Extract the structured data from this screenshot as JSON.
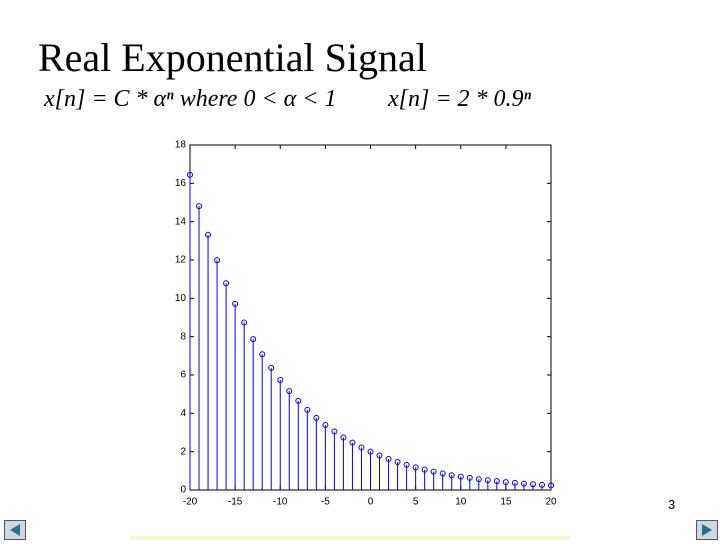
{
  "slide": {
    "title": "Real Exponential Signal",
    "formula_general": "x[n] = C * αⁿ  where 0 < α < 1",
    "formula_specific": "x[n] = 2 * 0.9ⁿ",
    "page_number": "3"
  },
  "chart_data": {
    "type": "stem",
    "color": "#0000ff",
    "x": [
      -20,
      -19,
      -18,
      -17,
      -16,
      -15,
      -14,
      -13,
      -12,
      -11,
      -10,
      -9,
      -8,
      -7,
      -6,
      -5,
      -4,
      -3,
      -2,
      -1,
      0,
      1,
      2,
      3,
      4,
      5,
      6,
      7,
      8,
      9,
      10,
      11,
      12,
      13,
      14,
      15,
      16,
      17,
      18,
      19,
      20
    ],
    "values": [
      16.45,
      14.81,
      13.32,
      11.99,
      10.79,
      9.71,
      8.74,
      7.87,
      7.08,
      6.37,
      5.74,
      5.16,
      4.65,
      4.18,
      3.76,
      3.39,
      3.05,
      2.74,
      2.47,
      2.22,
      2,
      1.8,
      1.62,
      1.46,
      1.31,
      1.18,
      1.06,
      0.96,
      0.86,
      0.77,
      0.7,
      0.63,
      0.56,
      0.51,
      0.46,
      0.41,
      0.37,
      0.33,
      0.3,
      0.27,
      0.24
    ],
    "xlim": [
      -20,
      20
    ],
    "xticks": [
      -20,
      -15,
      -10,
      -5,
      0,
      5,
      10,
      15,
      20
    ],
    "ylim": [
      0,
      18
    ],
    "yticks": [
      0,
      2,
      4,
      6,
      8,
      10,
      12,
      14,
      16,
      18
    ]
  }
}
